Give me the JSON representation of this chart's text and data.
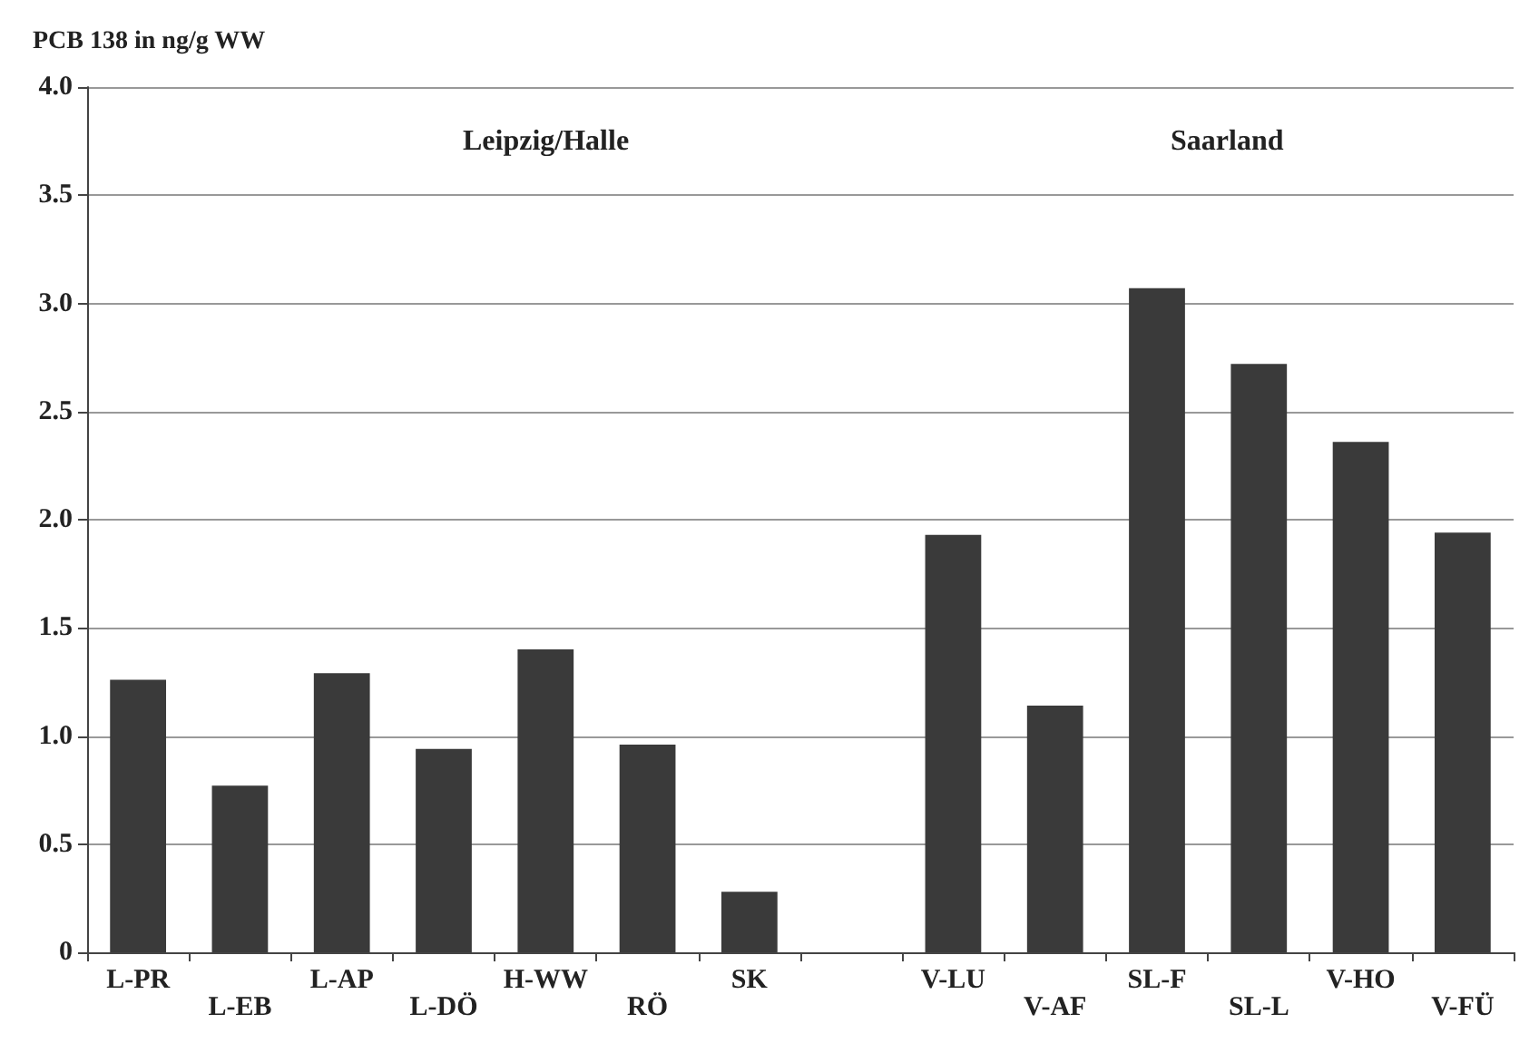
{
  "chart_data": {
    "type": "bar",
    "ylabel": "PCB 138 in ng/g WW",
    "categories": [
      "L-PR",
      "L-EB",
      "L-AP",
      "L-DÖ",
      "H-WW",
      "RÖ",
      "SK",
      null,
      "V-LU",
      "V-AF",
      "SL-F",
      "SL-L",
      "V-HO",
      "V-FÜ"
    ],
    "values": [
      1.26,
      0.77,
      1.29,
      0.94,
      1.4,
      0.96,
      0.28,
      null,
      1.93,
      1.14,
      3.07,
      2.72,
      2.36,
      1.94
    ],
    "color": "#3a3a3a",
    "annotations": [
      "Leipzig/Halle",
      "Saarland"
    ],
    "ylim": [
      0,
      4
    ],
    "yticks": [
      0,
      0.5,
      {
        "value": 1,
        "label": "1.0"
      },
      1.5,
      {
        "value": 2,
        "label": "2.0"
      },
      2.5,
      {
        "value": 3,
        "label": "3.0"
      },
      3.5,
      {
        "value": 4,
        "label": "4.0"
      }
    ],
    "grid": "y"
  }
}
